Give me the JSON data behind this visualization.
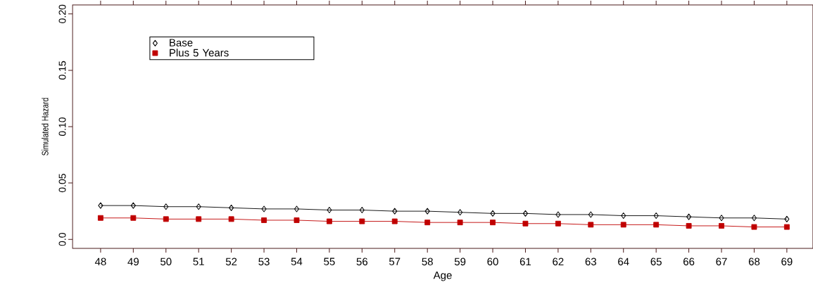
{
  "chart_data": {
    "type": "line",
    "xlabel": "Age",
    "ylabel": "Simulated Hazard",
    "categories": [
      "48",
      "49",
      "50",
      "51",
      "52",
      "53",
      "54",
      "55",
      "56",
      "57",
      "58",
      "59",
      "60",
      "61",
      "62",
      "63",
      "64",
      "65",
      "66",
      "67",
      "68",
      "69"
    ],
    "ylim": [
      -0.008,
      0.208
    ],
    "yticks": [
      {
        "value": 0,
        "label": "0.0"
      },
      0.05,
      {
        "value": 0.1,
        "label": "0.10"
      },
      0.15,
      {
        "value": 0.2,
        "label": "0.20"
      }
    ],
    "legend": "top left",
    "grid": false,
    "line_style": "solid",
    "series": [
      {
        "name": "Base",
        "color": "#000000",
        "marker": "diamond",
        "values": [
          0.03,
          0.03,
          0.029,
          0.029,
          0.028,
          0.027,
          0.027,
          0.026,
          0.026,
          0.025,
          0.025,
          0.024,
          0.023,
          0.023,
          0.022,
          0.022,
          0.021,
          0.021,
          0.02,
          0.019,
          0.019,
          0.018
        ]
      },
      {
        "name": "Plus 5 Years",
        "color": "#c00000",
        "marker": "square",
        "values": [
          0.019,
          0.019,
          0.018,
          0.018,
          0.018,
          0.017,
          0.017,
          0.016,
          0.016,
          0.016,
          0.015,
          0.015,
          0.015,
          0.014,
          0.014,
          0.013,
          0.013,
          0.013,
          0.012,
          0.012,
          0.011,
          0.011
        ]
      }
    ]
  }
}
